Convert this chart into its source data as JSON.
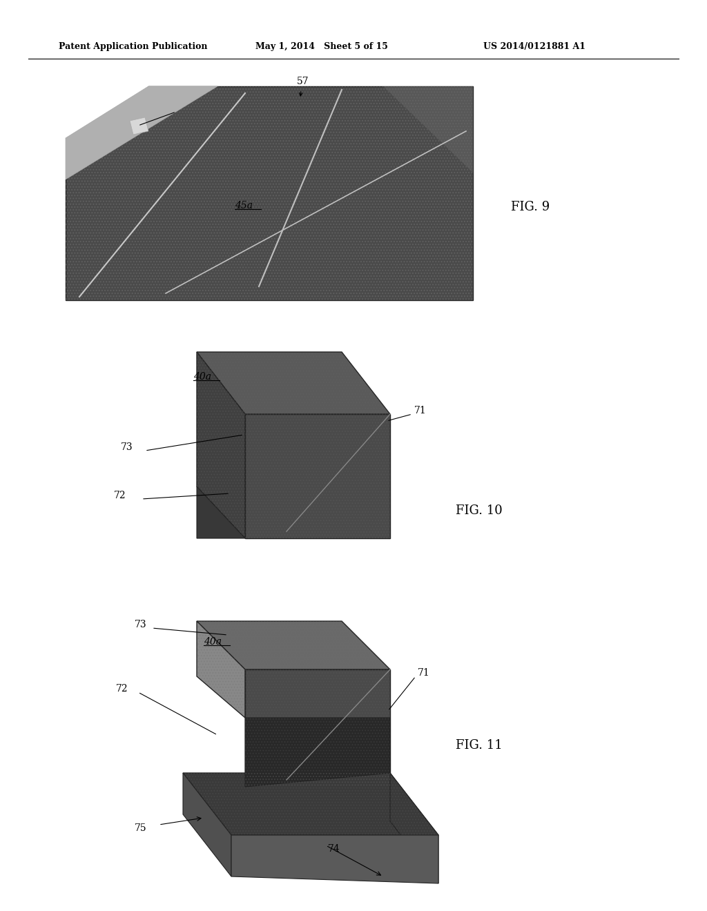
{
  "header_left": "Patent Application Publication",
  "header_mid": "May 1, 2014   Sheet 5 of 15",
  "header_right": "US 2014/0121881 A1",
  "fig9_label": "FIG. 9",
  "fig10_label": "FIG. 10",
  "fig11_label": "FIG. 11",
  "bg_color": "#ffffff"
}
